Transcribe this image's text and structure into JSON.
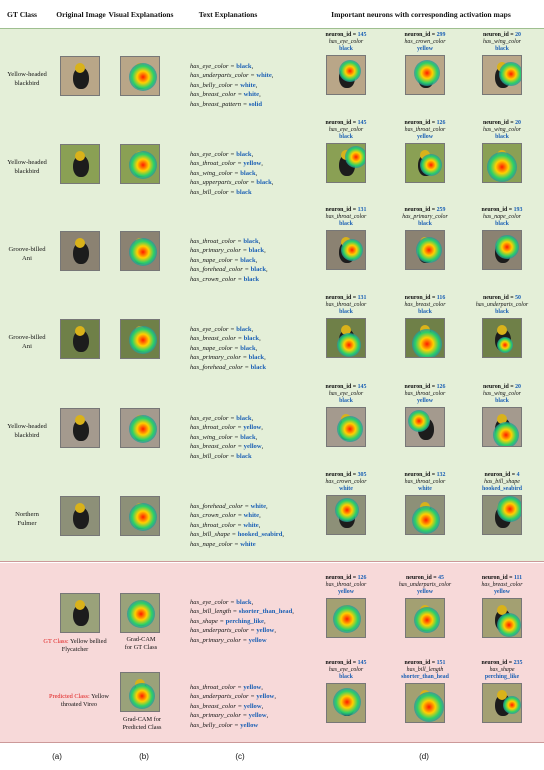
{
  "header": {
    "gt_class": "GT Class",
    "original_image": "Original Image",
    "visual_explanations": "Visual Explanations",
    "text_explanations": "Text Explanations",
    "important_neurons": "Important neurons with corresponding activation maps"
  },
  "rows": [
    {
      "gt": [
        "Yellow-headed",
        "blackbird"
      ],
      "bg": "#b9a688",
      "text": [
        [
          "has_eye_color",
          "black"
        ],
        [
          "has_underparts_color",
          "white"
        ],
        [
          "has_belly_color",
          "white"
        ],
        [
          "has_breast_color",
          "white"
        ],
        [
          "has_breast_pattern",
          "solid"
        ]
      ],
      "neurons": [
        {
          "id": "145",
          "attr": "has_eye_color",
          "val": "black"
        },
        {
          "id": "299",
          "attr": "has_crown_color",
          "val": "yellow"
        },
        {
          "id": "20",
          "attr": "has_wing_color",
          "val": "black"
        }
      ]
    },
    {
      "gt": [
        "Yellow-headed",
        "blackbird"
      ],
      "bg": "#8aa054",
      "text": [
        [
          "has_eye_color",
          "black"
        ],
        [
          "has_throat_color",
          "yellow"
        ],
        [
          "has_wing_color",
          "black"
        ],
        [
          "has_upperparts_color",
          "black"
        ],
        [
          "has_bill_color",
          "black"
        ]
      ],
      "neurons": [
        {
          "id": "145",
          "attr": "has_eye_color",
          "val": "black"
        },
        {
          "id": "126",
          "attr": "has_throat_color",
          "val": "yellow"
        },
        {
          "id": "20",
          "attr": "has_wing_color",
          "val": "black"
        }
      ]
    },
    {
      "gt": [
        "Groove-billed",
        "Ani"
      ],
      "bg": "#8b8272",
      "text": [
        [
          "has_throat_color",
          "black"
        ],
        [
          "has_primary_color",
          "black"
        ],
        [
          "has_nape_color",
          "black"
        ],
        [
          "has_forehead_color",
          "black"
        ],
        [
          "has_crown_color",
          "black"
        ]
      ],
      "neurons": [
        {
          "id": "131",
          "attr": "has_throat_color",
          "val": "black"
        },
        {
          "id": "259",
          "attr": "has_primary_color",
          "val": "black"
        },
        {
          "id": "193",
          "attr": "has_nape_color",
          "val": "black"
        }
      ]
    },
    {
      "gt": [
        "Groove-billed",
        "Ani"
      ],
      "bg": "#6f8048",
      "text": [
        [
          "has_eye_color",
          "black"
        ],
        [
          "has_breast_color",
          "black"
        ],
        [
          "has_nape_color",
          "black"
        ],
        [
          "has_primary_color",
          "black"
        ],
        [
          "has_forehead_color",
          "black"
        ]
      ],
      "neurons": [
        {
          "id": "131",
          "attr": "has_throat_color",
          "val": "black"
        },
        {
          "id": "116",
          "attr": "has_breast_color",
          "val": "black"
        },
        {
          "id": "50",
          "attr": "has_underparts_color",
          "val": "black"
        }
      ]
    },
    {
      "gt": [
        "Yellow-headed",
        "blackbird"
      ],
      "bg": "#a49a8e",
      "text": [
        [
          "has_eye_color",
          "black"
        ],
        [
          "has_throat_color",
          "yellow"
        ],
        [
          "has_wing_color",
          "black"
        ],
        [
          "has_breast_color",
          "yellow"
        ],
        [
          "has_bill_color",
          "black"
        ]
      ],
      "neurons": [
        {
          "id": "145",
          "attr": "has_eye_color",
          "val": "black"
        },
        {
          "id": "126",
          "attr": "has_throat_color",
          "val": "yellow"
        },
        {
          "id": "20",
          "attr": "has_wing_color",
          "val": "black"
        }
      ]
    },
    {
      "gt": [
        "Northern",
        "Fulmer"
      ],
      "bg": "#8d9078",
      "text": [
        [
          "has_forehead_color",
          "white"
        ],
        [
          "has_crown_color",
          "white"
        ],
        [
          "has_throat_color",
          "white"
        ],
        [
          "has_bill_shape",
          "hooked_seabird"
        ],
        [
          "has_nape_color",
          "white"
        ]
      ],
      "neurons": [
        {
          "id": "305",
          "attr": "has_crown_color",
          "val": "white"
        },
        {
          "id": "132",
          "attr": "has_throat_color",
          "val": "white"
        },
        {
          "id": "4",
          "attr": "has_bill_shape",
          "val": "hooked_seabird"
        }
      ]
    }
  ],
  "predicted": {
    "gt_label": "GT Class:",
    "gt_name": [
      "Yellow bellied",
      "Flycatcher"
    ],
    "pred_label": "Predicted Class:",
    "pred_name": [
      "Yellow",
      "throated Vireo"
    ],
    "gradcam_gt": [
      "Grad-CAM",
      "for GT Class"
    ],
    "gradcam_pred": [
      "Grad-CAM for",
      "Predicted Class"
    ],
    "text_gt": [
      [
        "has_eye_color",
        "black"
      ],
      [
        "has_bill_length",
        "shorter_than_head"
      ],
      [
        "has_shape",
        "perching_like"
      ],
      [
        "has_underparts_color",
        "yellow"
      ],
      [
        "has_primary_color",
        "yellow"
      ]
    ],
    "text_pred": [
      [
        "has_throat_color",
        "yellow"
      ],
      [
        "has_underparts_color",
        "yellow"
      ],
      [
        "has_breast_color",
        "yellow"
      ],
      [
        "has_primary_color",
        "yellow"
      ],
      [
        "has_belly_color",
        "yellow"
      ]
    ],
    "neurons_gt": [
      {
        "id": "126",
        "attr": "has_throat_color",
        "val": "yellow"
      },
      {
        "id": "45",
        "attr": "has_underparts_color",
        "val": "yellow"
      },
      {
        "id": "111",
        "attr": "has_breast_color",
        "val": "yellow"
      }
    ],
    "neurons_pred": [
      {
        "id": "145",
        "attr": "has_eye_color",
        "val": "black"
      },
      {
        "id": "151",
        "attr": "has_bill_length",
        "val": "shorter_than_head"
      },
      {
        "id": "235",
        "attr": "has_shape",
        "val": "perching_like"
      }
    ]
  },
  "neuron_prefix": "neuron_id",
  "footer": [
    "(a)",
    "(b)",
    "(c)",
    "(d)"
  ],
  "colors": {
    "value_blue": "#1a5fb4",
    "red_label": "#e01b1b",
    "green_panel": "#e4efd8",
    "pink_panel": "#f7d9d9"
  }
}
